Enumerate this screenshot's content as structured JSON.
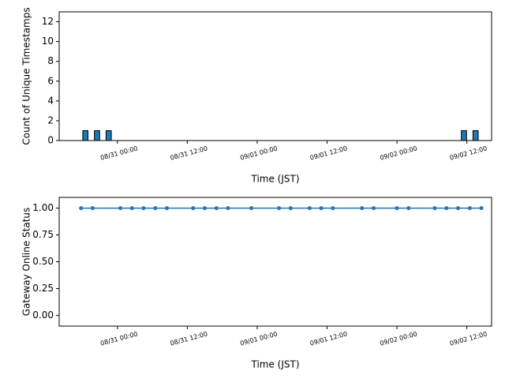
{
  "chart_data": [
    {
      "type": "bar",
      "ylabel": "Count of Unique Timestamps",
      "xlabel": "Time (JST)",
      "x": [
        "08/30 18:30",
        "08/30 20:30",
        "08/30 22:30",
        "09/02 11:30",
        "09/02 13:30"
      ],
      "values": [
        1,
        1,
        1,
        1,
        1
      ],
      "color": "#1f77b4",
      "edgecolor": "#000000",
      "xlim": [
        "08/30 14:00",
        "09/02 16:15"
      ],
      "xticks": [
        "08/31 00:00",
        "08/31 12:00",
        "09/01 00:00",
        "09/01 12:00",
        "09/02 00:00",
        "09/02 12:00"
      ],
      "ylim": [
        0,
        13
      ],
      "yticks": [
        0,
        2,
        4,
        6,
        8,
        10,
        12
      ]
    },
    {
      "type": "line",
      "ylabel": "Gateway Online Status",
      "xlabel": "Time (JST)",
      "x": [
        "08/30 17:45",
        "08/30 19:45",
        "08/31 00:30",
        "08/31 02:30",
        "08/31 04:30",
        "08/31 06:30",
        "08/31 08:30",
        "08/31 13:00",
        "08/31 15:00",
        "08/31 17:00",
        "08/31 19:00",
        "08/31 23:00",
        "09/01 03:45",
        "09/01 05:45",
        "09/01 09:00",
        "09/01 11:00",
        "09/01 13:00",
        "09/01 18:00",
        "09/01 20:00",
        "09/02 00:00",
        "09/02 02:00",
        "09/02 06:30",
        "09/02 08:30",
        "09/02 10:30",
        "09/02 12:30",
        "09/02 14:30"
      ],
      "values": [
        1,
        1,
        1,
        1,
        1,
        1,
        1,
        1,
        1,
        1,
        1,
        1,
        1,
        1,
        1,
        1,
        1,
        1,
        1,
        1,
        1,
        1,
        1,
        1,
        1,
        1
      ],
      "color": "#1f77b4",
      "xlim": [
        "08/30 14:00",
        "09/02 16:15"
      ],
      "xticks": [
        "08/31 00:00",
        "08/31 12:00",
        "09/01 00:00",
        "09/01 12:00",
        "09/02 00:00",
        "09/02 12:00"
      ],
      "ylim": [
        -0.1,
        1.1
      ],
      "yticks": [
        {
          "value": 0,
          "label": "0.00"
        },
        {
          "value": 0.25,
          "label": "0.25"
        },
        {
          "value": 0.5,
          "label": "0.50"
        },
        {
          "value": 0.75,
          "label": "0.75"
        },
        {
          "value": 1,
          "label": "1.00"
        }
      ]
    }
  ]
}
